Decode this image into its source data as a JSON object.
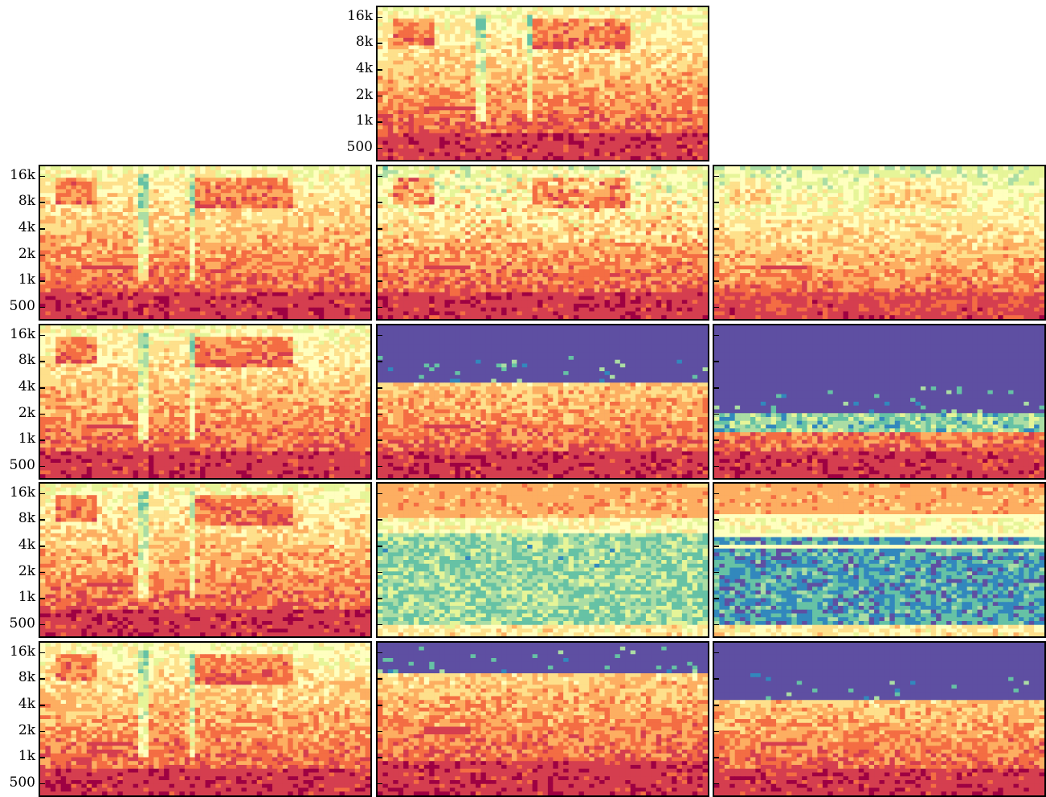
{
  "chart_data": {
    "type": "heatmap",
    "description_free": true,
    "yaxis": {
      "scale": "log",
      "ticks": [
        "16k",
        "8k",
        "4k",
        "2k",
        "1k",
        "500"
      ],
      "tick_values_hz": [
        16000,
        8000,
        4000,
        2000,
        1000,
        500
      ]
    },
    "colormap": [
      "#9e0142",
      "#d53e4f",
      "#f46d43",
      "#fdae61",
      "#fee08b",
      "#ffffbf",
      "#e6f598",
      "#abdda4",
      "#66c2a5",
      "#3288bd",
      "#5e4fa2"
    ],
    "panels": [
      {
        "id": "p0",
        "row": 0,
        "col": 1,
        "ylabels": true,
        "cutoff_hz": 20000,
        "style": "full"
      },
      {
        "id": "p1",
        "row": 1,
        "col": 0,
        "ylabels": true,
        "cutoff_hz": 20000,
        "style": "full"
      },
      {
        "id": "p2",
        "row": 1,
        "col": 1,
        "ylabels": false,
        "cutoff_hz": 20000,
        "style": "full_noisy"
      },
      {
        "id": "p3",
        "row": 1,
        "col": 2,
        "ylabels": false,
        "cutoff_hz": 20000,
        "style": "smooth"
      },
      {
        "id": "p4",
        "row": 2,
        "col": 0,
        "ylabels": true,
        "cutoff_hz": 20000,
        "style": "full_gapped"
      },
      {
        "id": "p5",
        "row": 2,
        "col": 1,
        "ylabels": false,
        "cutoff_hz": 4500,
        "style": "bandlimited"
      },
      {
        "id": "p6",
        "row": 2,
        "col": 2,
        "ylabels": false,
        "cutoff_hz": 2000,
        "style": "bandlimited_low"
      },
      {
        "id": "p7",
        "row": 3,
        "col": 0,
        "ylabels": true,
        "cutoff_hz": 20000,
        "style": "full"
      },
      {
        "id": "p8",
        "row": 3,
        "col": 1,
        "ylabels": false,
        "cutoff_hz": 20000,
        "style": "inverted"
      },
      {
        "id": "p9",
        "row": 3,
        "col": 2,
        "ylabels": false,
        "cutoff_hz": 20000,
        "style": "inverted_lines"
      },
      {
        "id": "p10",
        "row": 4,
        "col": 0,
        "ylabels": true,
        "cutoff_hz": 20000,
        "style": "full"
      },
      {
        "id": "p11",
        "row": 4,
        "col": 1,
        "ylabels": false,
        "cutoff_hz": 9000,
        "style": "bandlimited"
      },
      {
        "id": "p12",
        "row": 4,
        "col": 2,
        "ylabels": false,
        "cutoff_hz": 4400,
        "style": "bandlimited_striped"
      }
    ]
  }
}
